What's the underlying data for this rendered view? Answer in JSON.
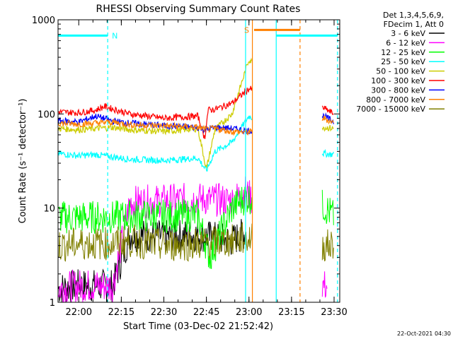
{
  "chart_data": {
    "type": "line",
    "title": "RHESSI Observing Summary Count Rates",
    "xlabel": "Start Time (03-Dec-02 21:52:42)",
    "ylabel": "Count Rate (s⁻¹ detector⁻¹)",
    "yscale": "log",
    "ylim": [
      1,
      1000
    ],
    "xlim": [
      21.8783,
      23.5333
    ],
    "x_ticks": [
      {
        "value": 22.0,
        "label": "22:00"
      },
      {
        "value": 22.25,
        "label": "22:15"
      },
      {
        "value": 22.5,
        "label": "22:30"
      },
      {
        "value": 22.75,
        "label": "22:45"
      },
      {
        "value": 23.0,
        "label": "23:00"
      },
      {
        "value": 23.25,
        "label": "23:15"
      },
      {
        "value": 23.5,
        "label": "23:30"
      }
    ],
    "y_ticks": [
      {
        "value": 1,
        "label": "1"
      },
      {
        "value": 10,
        "label": "10"
      },
      {
        "value": 100,
        "label": "100"
      },
      {
        "value": 1000,
        "label": "1000"
      }
    ],
    "legend_header": [
      "Det 1,3,4,5,6,9,",
      "FDecim 1, Att 0"
    ],
    "legend_position": "right",
    "series": [
      {
        "name": "3 - 6 keV",
        "color": "#000000",
        "x": [
          21.88,
          22.0,
          22.2,
          22.3,
          22.5,
          22.7,
          22.9,
          22.98,
          23.45,
          23.5
        ],
        "values": [
          1.4,
          1.5,
          1.5,
          5.2,
          5.0,
          5.2,
          4.5,
          5.5,
          null,
          null
        ]
      },
      {
        "name": "6 - 12 keV",
        "color": "#ff00ff",
        "x": [
          21.88,
          22.0,
          22.2,
          22.3,
          22.5,
          22.7,
          22.9,
          22.98,
          23.44,
          23.46
        ],
        "values": [
          1.4,
          1.5,
          1.5,
          11.5,
          12.0,
          12.5,
          12.0,
          15.0,
          1.5,
          1.5
        ]
      },
      {
        "name": "12 - 25 keV",
        "color": "#00ff00",
        "x": [
          21.88,
          22.0,
          22.2,
          22.3,
          22.5,
          22.7,
          22.77,
          22.9,
          22.98,
          23.44,
          23.5
        ],
        "values": [
          8.0,
          8.0,
          8.0,
          8.2,
          8.2,
          8.4,
          3.0,
          10.0,
          13.0,
          10.5,
          8.0
        ]
      },
      {
        "name": "25 - 50 keV",
        "color": "#00ffff",
        "x": [
          21.88,
          22.0,
          22.1,
          22.2,
          22.3,
          22.5,
          22.7,
          22.75,
          22.8,
          22.9,
          23.0,
          23.44,
          23.5
        ],
        "values": [
          38,
          36,
          37,
          35,
          33,
          32,
          34,
          25,
          40,
          50,
          95,
          38,
          37
        ]
      },
      {
        "name": "50 - 100 keV",
        "color": "#cccc00",
        "x": [
          21.88,
          22.0,
          22.1,
          22.2,
          22.3,
          22.5,
          22.7,
          22.75,
          22.8,
          22.9,
          23.0,
          23.44,
          23.5
        ],
        "values": [
          70,
          68,
          70,
          72,
          68,
          65,
          70,
          26,
          68,
          100,
          380,
          72,
          70
        ]
      },
      {
        "name": "100 - 300 keV",
        "color": "#ff0000",
        "x": [
          21.88,
          22.0,
          22.1,
          22.15,
          22.3,
          22.5,
          22.7,
          22.74,
          22.76,
          22.8,
          22.9,
          23.0,
          23.44,
          23.5
        ],
        "values": [
          105,
          103,
          110,
          120,
          100,
          90,
          95,
          55,
          110,
          112,
          130,
          185,
          115,
          100
        ]
      },
      {
        "name": "300 - 800 keV",
        "color": "#0000ff",
        "x": [
          21.88,
          22.0,
          22.1,
          22.2,
          22.3,
          22.5,
          22.7,
          22.75,
          22.8,
          22.9,
          23.0,
          23.44,
          23.5
        ],
        "values": [
          85,
          82,
          95,
          84,
          80,
          75,
          72,
          68,
          72,
          70,
          66,
          95,
          82
        ]
      },
      {
        "name": "800 - 7000 keV",
        "color": "#ff8000",
        "x": [
          21.88,
          22.0,
          22.1,
          22.2,
          22.3,
          22.5,
          22.7,
          22.75,
          22.8,
          22.9,
          23.0,
          23.44,
          23.5
        ],
        "values": [
          80,
          78,
          80,
          82,
          77,
          75,
          72,
          68,
          70,
          65,
          64,
          90,
          80
        ]
      },
      {
        "name": "7000 - 15000 keV",
        "color": "#808000",
        "x": [
          21.88,
          22.0,
          22.2,
          22.3,
          22.5,
          22.7,
          22.9,
          22.98,
          23.44,
          23.5
        ],
        "values": [
          4.0,
          4.2,
          4.2,
          4.5,
          4.0,
          4.2,
          4.5,
          4.8,
          4.0,
          4.0
        ]
      }
    ],
    "annotations": [
      {
        "label": "N",
        "color": "#00ffff",
        "x_start": 21.8783,
        "x_end": 22.17,
        "y": 680
      },
      {
        "label": "S",
        "color": "#ff8000",
        "x_start": 23.03,
        "x_end": 23.3,
        "y": 780
      },
      {
        "label": "",
        "color": "#00ffff",
        "x_start": 23.16,
        "x_end": 23.52,
        "y": 680
      }
    ],
    "vertical_lines": [
      {
        "x": 22.17,
        "color": "#00ffff",
        "dashed": true
      },
      {
        "x": 22.98,
        "color": "#00ffff",
        "dashed": false
      },
      {
        "x": 23.02,
        "color": "#ff8000",
        "dashed": false
      },
      {
        "x": 23.16,
        "color": "#00ffff",
        "dashed": false
      },
      {
        "x": 23.3,
        "color": "#ff8000",
        "dashed": true
      },
      {
        "x": 23.52,
        "color": "#00ffff",
        "dashed": true
      }
    ],
    "data_gap": {
      "from": 23.02,
      "to": 23.43
    },
    "timestamp": "22-Oct-2021 04:30"
  }
}
